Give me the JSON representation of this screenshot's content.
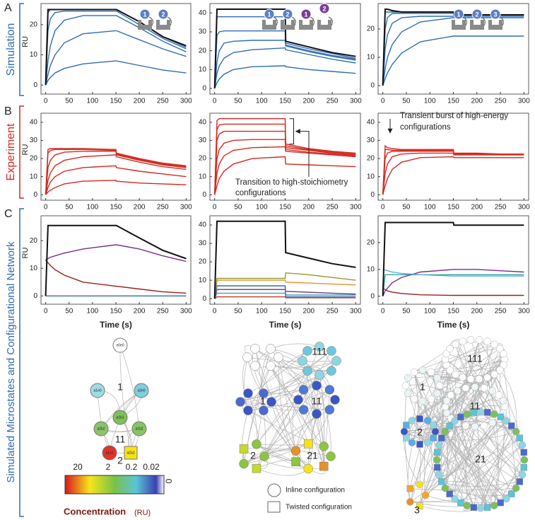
{
  "panel_labels": [
    "A",
    "B",
    "C"
  ],
  "row_labels": [
    "Simulation",
    "Experiment",
    "Simulated Microstates and Configurational Network"
  ],
  "insets": [
    [
      "1",
      "2"
    ],
    [
      "1",
      "2",
      "1",
      "2"
    ],
    [
      "1",
      "2",
      "3"
    ]
  ],
  "chart_data": [
    {
      "type": "line",
      "ylabel": "RU",
      "x": [
        0,
        5,
        10,
        20,
        40,
        80,
        150,
        151,
        200,
        250,
        300
      ],
      "xlim": [
        -10,
        310
      ],
      "xticks": [
        0,
        50,
        100,
        150,
        200,
        250,
        300
      ],
      "ylim": [
        -3,
        27
      ],
      "yticks": [
        0,
        10,
        20
      ],
      "series": [
        {
          "color": "#111111",
          "values": [
            0,
            25,
            25,
            25,
            25,
            25,
            25,
            25,
            21,
            16,
            13
          ]
        },
        {
          "color": "#2f6db5",
          "values": [
            0,
            24,
            25,
            25,
            25,
            25,
            25,
            25,
            21,
            16,
            12.5
          ]
        },
        {
          "color": "#2f6db5",
          "values": [
            0,
            18,
            22,
            24,
            24.5,
            24.5,
            24.5,
            24.5,
            20,
            15.5,
            12
          ]
        },
        {
          "color": "#2f6db5",
          "values": [
            0,
            8,
            13,
            18,
            21.5,
            23,
            23,
            23,
            19,
            14.5,
            11
          ]
        },
        {
          "color": "#2f6db5",
          "values": [
            0,
            3.5,
            6.5,
            10,
            14,
            17,
            18,
            18,
            15,
            12,
            9.5
          ]
        },
        {
          "color": "#2f6db5",
          "values": [
            0,
            1.5,
            2.5,
            4,
            5.5,
            7,
            8,
            8,
            6.5,
            5,
            4
          ]
        }
      ]
    },
    {
      "type": "line",
      "x": [
        0,
        5,
        10,
        20,
        40,
        80,
        150,
        151,
        200,
        250,
        300
      ],
      "xlim": [
        -10,
        310
      ],
      "xticks": [
        0,
        50,
        100,
        150,
        200,
        250,
        300
      ],
      "ylim": [
        -3,
        45
      ],
      "yticks": [
        0,
        10,
        20,
        30,
        40
      ],
      "series": [
        {
          "color": "#111111",
          "values": [
            0,
            42,
            42,
            42,
            42,
            42,
            42,
            25,
            22,
            19,
            17
          ]
        },
        {
          "color": "#2f6db5",
          "values": [
            0,
            38,
            38,
            38,
            38,
            38,
            38,
            24,
            21,
            18.5,
            16
          ]
        },
        {
          "color": "#2f6db5",
          "values": [
            0,
            28,
            30,
            30.5,
            30.5,
            30.5,
            30.5,
            23,
            20,
            17.5,
            15.5
          ]
        },
        {
          "color": "#2f6db5",
          "values": [
            0,
            14,
            20,
            24,
            25,
            25.5,
            25.5,
            22.5,
            19.5,
            17,
            15
          ]
        },
        {
          "color": "#2f6db5",
          "values": [
            0,
            8,
            12,
            16,
            19,
            20.5,
            21.5,
            20.5,
            18,
            15.5,
            13.5
          ]
        },
        {
          "color": "#2f6db5",
          "values": [
            0,
            3,
            5,
            7.5,
            10,
            11.5,
            12,
            11.5,
            10,
            9,
            8
          ]
        }
      ]
    },
    {
      "type": "line",
      "x": [
        0,
        5,
        10,
        20,
        40,
        80,
        150,
        151,
        200,
        250,
        300
      ],
      "xlim": [
        -10,
        310
      ],
      "xticks": [
        0,
        50,
        100,
        150,
        200,
        250,
        300
      ],
      "ylim": [
        -3,
        29
      ],
      "yticks": [
        0,
        10,
        20
      ],
      "series": [
        {
          "color": "#111111",
          "values": [
            0,
            27,
            27,
            26.5,
            26,
            26,
            26,
            25,
            25,
            25,
            25
          ]
        },
        {
          "color": "#2f6db5",
          "values": [
            0,
            26,
            26,
            26,
            26,
            26,
            26,
            25,
            25,
            25,
            25
          ]
        },
        {
          "color": "#2f6db5",
          "values": [
            0,
            20,
            24,
            25.5,
            25.5,
            25.5,
            25.5,
            25,
            25,
            25,
            25
          ]
        },
        {
          "color": "#2f6db5",
          "values": [
            0,
            13,
            18,
            22,
            24,
            24.5,
            24.5,
            24.5,
            24.5,
            24.5,
            24.5
          ]
        },
        {
          "color": "#2f6db5",
          "values": [
            0,
            6,
            10,
            14.5,
            19,
            22.5,
            24,
            24,
            24,
            24,
            24
          ]
        },
        {
          "color": "#2f6db5",
          "values": [
            0,
            2.5,
            4.5,
            7.5,
            11.5,
            15.5,
            17.5,
            17.5,
            17.5,
            17.5,
            17.5
          ]
        }
      ]
    },
    {
      "type": "line",
      "ylabel": "RU",
      "x": [
        0,
        5,
        10,
        20,
        40,
        80,
        150,
        151,
        200,
        250,
        300
      ],
      "xlim": [
        -10,
        310
      ],
      "xticks": [
        0,
        50,
        100,
        150,
        200,
        250,
        300
      ],
      "ylim": [
        -3,
        45
      ],
      "yticks": [
        0,
        10,
        20,
        30,
        40
      ],
      "series": [
        {
          "color": "#d42a20",
          "values": [
            0,
            25,
            25.5,
            25.5,
            25.5,
            25.5,
            25,
            23,
            20,
            17.5,
            16
          ]
        },
        {
          "color": "#d42a20",
          "values": [
            0,
            23,
            24.5,
            25,
            25,
            25,
            24.5,
            22.5,
            19.5,
            17,
            15.5
          ]
        },
        {
          "color": "#d42a20",
          "values": [
            0,
            15,
            19,
            22,
            23.5,
            24,
            24,
            22,
            19,
            16.5,
            15
          ]
        },
        {
          "color": "#d42a20",
          "values": [
            0,
            8,
            12,
            16,
            19,
            21,
            22,
            21,
            18,
            15.5,
            14
          ]
        },
        {
          "color": "#d42a20",
          "values": [
            0,
            4,
            7,
            10,
            13,
            15,
            16,
            15,
            13,
            11.5,
            10
          ]
        },
        {
          "color": "#d42a20",
          "values": [
            0,
            1.5,
            2.5,
            4,
            6,
            7.5,
            8,
            7.5,
            6.5,
            6,
            5.5
          ]
        }
      ]
    },
    {
      "type": "line",
      "x": [
        0,
        5,
        10,
        20,
        40,
        80,
        150,
        151,
        200,
        250,
        300
      ],
      "xlim": [
        -10,
        310
      ],
      "xticks": [
        0,
        50,
        100,
        150,
        200,
        250,
        300
      ],
      "ylim": [
        -3,
        45
      ],
      "yticks": [
        0,
        10,
        20,
        30,
        40
      ],
      "annotation": [
        "Transition to high-stoichiometry",
        "configurations"
      ],
      "series": [
        {
          "color": "#d42a20",
          "values": [
            0,
            41,
            42,
            42,
            42,
            42,
            42,
            28,
            25.5,
            24,
            23
          ]
        },
        {
          "color": "#d42a20",
          "values": [
            0,
            36,
            38.5,
            39,
            39,
            39,
            39,
            27,
            25,
            23.5,
            22.5
          ]
        },
        {
          "color": "#d42a20",
          "values": [
            0,
            30,
            33.5,
            35,
            35,
            35,
            35,
            26,
            24.5,
            23,
            22
          ]
        },
        {
          "color": "#d42a20",
          "values": [
            0,
            20,
            25,
            28.5,
            30,
            30.5,
            30.5,
            25,
            23.5,
            22.5,
            21.5
          ]
        },
        {
          "color": "#d42a20",
          "values": [
            0,
            12,
            17,
            21.5,
            24.5,
            26,
            26.5,
            24,
            23,
            22,
            21
          ]
        },
        {
          "color": "#d42a20",
          "values": [
            0,
            5,
            9,
            13,
            17,
            20,
            21,
            17,
            16.5,
            16,
            15.5
          ]
        }
      ]
    },
    {
      "type": "line",
      "x": [
        0,
        5,
        10,
        20,
        40,
        80,
        150,
        151,
        200,
        250,
        300
      ],
      "xlim": [
        -10,
        310
      ],
      "xticks": [
        0,
        50,
        100,
        150,
        200,
        250,
        300
      ],
      "ylim": [
        -3,
        45
      ],
      "yticks": [
        0,
        10,
        20,
        30,
        40
      ],
      "annotation": [
        "Transient burst of high-energy",
        "configurations"
      ],
      "series": [
        {
          "color": "#d42a20",
          "values": [
            0,
            27,
            26,
            25.5,
            25,
            25,
            25,
            23,
            23,
            22.5,
            22.5
          ]
        },
        {
          "color": "#d42a20",
          "values": [
            0,
            25,
            25,
            24.5,
            24.5,
            24.5,
            24.5,
            22.5,
            22.5,
            22.5,
            22.5
          ]
        },
        {
          "color": "#d42a20",
          "values": [
            0,
            20,
            23,
            24,
            24,
            24,
            24,
            22.5,
            22.5,
            22.5,
            22.5
          ]
        },
        {
          "color": "#d42a20",
          "values": [
            0,
            12,
            17,
            21,
            22.5,
            23,
            23,
            22,
            22,
            22,
            22
          ]
        },
        {
          "color": "#d42a20",
          "values": [
            0,
            5,
            9,
            14,
            18,
            20.5,
            21,
            20.5,
            20.5,
            20.5,
            20.5
          ]
        }
      ]
    },
    {
      "type": "line",
      "ylabel": "RU",
      "xlabel": "Time (s)",
      "x": [
        0,
        5,
        10,
        20,
        40,
        80,
        150,
        151,
        200,
        250,
        300
      ],
      "xlim": [
        -10,
        310
      ],
      "xticks": [
        0,
        50,
        100,
        150,
        200,
        250,
        300
      ],
      "ylim": [
        -3,
        29
      ],
      "yticks": [
        0,
        10,
        20
      ],
      "series": [
        {
          "color": "#111111",
          "values": [
            0,
            25.5,
            25.5,
            25.5,
            25.5,
            25.5,
            25.5,
            25.5,
            21,
            16.5,
            13.5
          ]
        },
        {
          "color": "#7b2d8e",
          "values": [
            13,
            13.5,
            14,
            14.5,
            15.5,
            17,
            18.5,
            18.5,
            17,
            14.5,
            12.5
          ]
        },
        {
          "color": "#9b1d1d",
          "values": [
            13,
            12,
            11,
            9.5,
            7.5,
            5,
            3.5,
            3.5,
            2.5,
            1.5,
            1
          ]
        },
        {
          "color": "#2f6db5",
          "values": [
            0,
            0,
            0,
            0,
            0,
            0,
            0,
            0,
            0,
            0,
            0
          ]
        }
      ]
    },
    {
      "type": "line",
      "xlabel": "Time (s)",
      "x": [
        0,
        5,
        10,
        20,
        40,
        80,
        150,
        151,
        200,
        250,
        300
      ],
      "xlim": [
        -10,
        310
      ],
      "xticks": [
        0,
        50,
        100,
        150,
        200,
        250,
        300
      ],
      "ylim": [
        -3,
        45
      ],
      "yticks": [
        0,
        10,
        20,
        30,
        40
      ],
      "series": [
        {
          "color": "#111111",
          "values": [
            0,
            42,
            42,
            42,
            42,
            42,
            42,
            25,
            22,
            19,
            17
          ]
        },
        {
          "color": "#9a9a2a",
          "values": [
            0,
            11,
            11,
            11,
            11,
            11,
            11,
            14,
            13,
            11.5,
            10
          ]
        },
        {
          "color": "#e8912a",
          "values": [
            0,
            10,
            10,
            10,
            10,
            10,
            10,
            9,
            8.5,
            8,
            7.5
          ]
        },
        {
          "color": "#2f6db5",
          "values": [
            0,
            7,
            7,
            7,
            7,
            7,
            7,
            1,
            1,
            1,
            1
          ]
        },
        {
          "color": "#7b2d8e",
          "values": [
            0,
            5,
            5,
            5,
            5,
            5,
            5,
            4,
            3.5,
            3,
            2.5
          ]
        },
        {
          "color": "#3aa6a0",
          "values": [
            0,
            3,
            3,
            3,
            3,
            3,
            3,
            2,
            2,
            2,
            2
          ]
        },
        {
          "color": "#c0392b",
          "values": [
            0,
            1,
            1,
            1,
            1,
            1,
            1,
            0.5,
            0.5,
            0.5,
            0.5
          ]
        }
      ]
    },
    {
      "type": "line",
      "xlabel": "Time (s)",
      "x": [
        0,
        5,
        10,
        20,
        40,
        80,
        150,
        151,
        200,
        250,
        300
      ],
      "xlim": [
        -10,
        310
      ],
      "xticks": [
        0,
        50,
        100,
        150,
        200,
        250,
        300
      ],
      "ylim": [
        -3,
        30
      ],
      "yticks": [
        0,
        10,
        20
      ],
      "series": [
        {
          "color": "#111111",
          "values": [
            0,
            27.5,
            27.5,
            27.5,
            27.5,
            27.5,
            27.5,
            26.5,
            26.5,
            26.5,
            26.5
          ]
        },
        {
          "color": "#5aaee0",
          "values": [
            10,
            9.8,
            9.5,
            9,
            8.5,
            8,
            7.5,
            7.5,
            7.5,
            7.5,
            7.5
          ]
        },
        {
          "color": "#7b2d8e",
          "values": [
            0,
            2,
            3,
            5,
            7,
            9,
            10,
            10,
            10,
            9.5,
            9
          ]
        },
        {
          "color": "#3aa6a0",
          "values": [
            0,
            8,
            8,
            8,
            8,
            8,
            8,
            8,
            8,
            8,
            8
          ]
        },
        {
          "color": "#9b1d1d",
          "values": [
            3,
            2.5,
            2,
            1.5,
            1,
            0.5,
            0.3,
            0.3,
            0.3,
            0.3,
            0.3
          ]
        }
      ]
    }
  ],
  "networks": [
    {
      "groups": [
        "1",
        "11",
        "2"
      ],
      "nodes": [
        "e0e0",
        "a1e0",
        "a2e0",
        "a1b1",
        "a2b2",
        "a1b2",
        "a1a1",
        "a2a1"
      ]
    },
    {
      "groups": [
        "111",
        "1",
        "11",
        "2",
        "21"
      ]
    },
    {
      "groups": [
        "111",
        "1",
        "11",
        "2",
        "21",
        "3"
      ]
    }
  ],
  "legend": [
    "Inline configuration",
    "Twisted configuration"
  ],
  "colorbar": {
    "ticks": [
      "20",
      "2",
      "0.2",
      "0.02",
      "0"
    ],
    "title": "Concentration",
    "unit": "(RU)"
  }
}
